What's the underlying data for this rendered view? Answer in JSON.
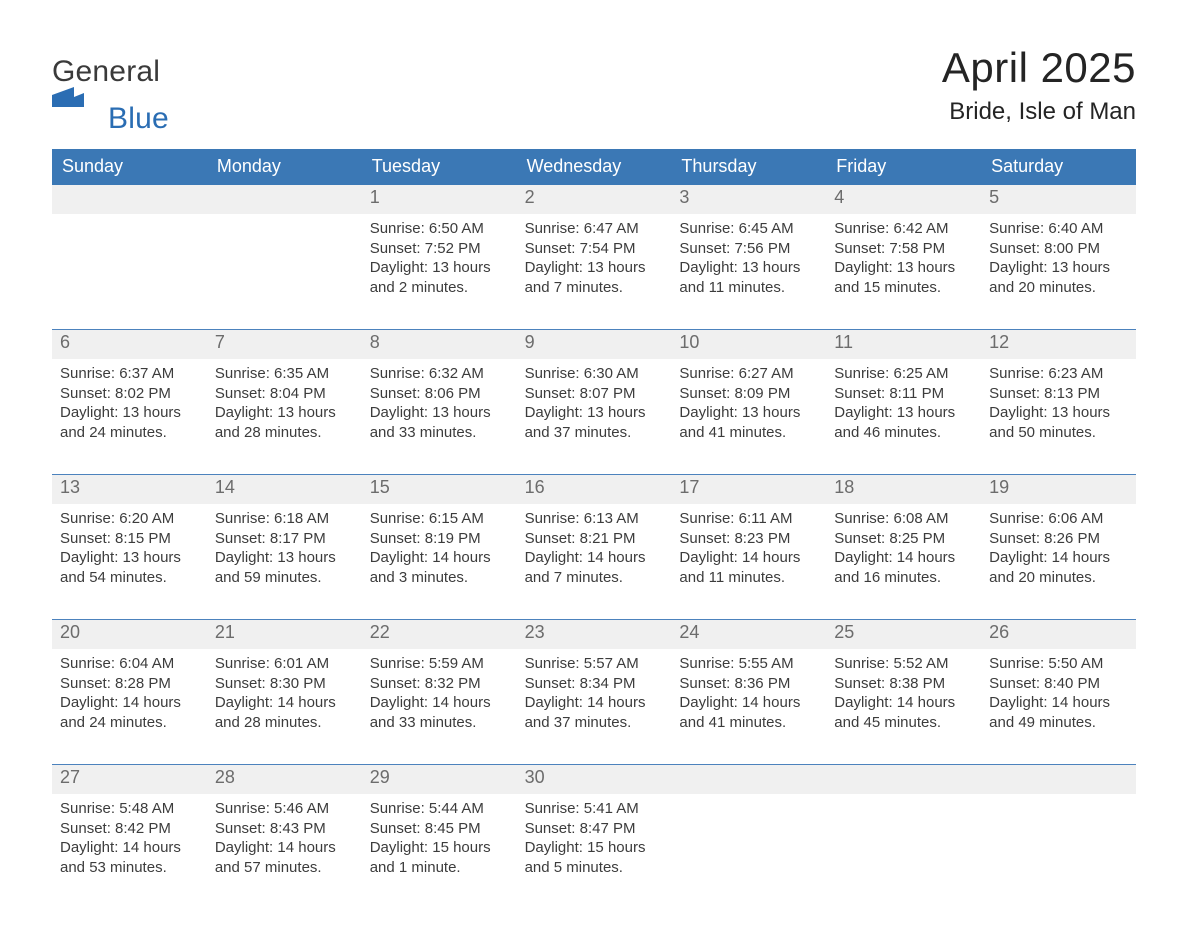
{
  "brand": {
    "word1": "General",
    "word2": "Blue",
    "mark_color": "#2a6db3",
    "word1_color": "#3a3a3a",
    "word2_color": "#2a6db3"
  },
  "title": "April 2025",
  "subtitle": "Bride, Isle of Man",
  "colors": {
    "header_bg": "#3b78b5",
    "header_fg": "#ffffff",
    "daynum_bg": "#f0f0f0",
    "daynum_fg": "#6c6c6c",
    "body_fg": "#3c3c3c",
    "rule": "#4c82bd",
    "page_bg": "#ffffff"
  },
  "typography": {
    "title_fontsize": 42,
    "subtitle_fontsize": 24,
    "dow_fontsize": 18,
    "daynum_fontsize": 18,
    "body_fontsize": 15,
    "font_family": "Helvetica Neue, Helvetica, Arial, sans-serif"
  },
  "days_of_week": [
    "Sunday",
    "Monday",
    "Tuesday",
    "Wednesday",
    "Thursday",
    "Friday",
    "Saturday"
  ],
  "weeks": [
    [
      {
        "num": "",
        "sunrise": "",
        "sunset": "",
        "daylight": ""
      },
      {
        "num": "",
        "sunrise": "",
        "sunset": "",
        "daylight": ""
      },
      {
        "num": "1",
        "sunrise": "Sunrise: 6:50 AM",
        "sunset": "Sunset: 7:52 PM",
        "daylight": "Daylight: 13 hours and 2 minutes."
      },
      {
        "num": "2",
        "sunrise": "Sunrise: 6:47 AM",
        "sunset": "Sunset: 7:54 PM",
        "daylight": "Daylight: 13 hours and 7 minutes."
      },
      {
        "num": "3",
        "sunrise": "Sunrise: 6:45 AM",
        "sunset": "Sunset: 7:56 PM",
        "daylight": "Daylight: 13 hours and 11 minutes."
      },
      {
        "num": "4",
        "sunrise": "Sunrise: 6:42 AM",
        "sunset": "Sunset: 7:58 PM",
        "daylight": "Daylight: 13 hours and 15 minutes."
      },
      {
        "num": "5",
        "sunrise": "Sunrise: 6:40 AM",
        "sunset": "Sunset: 8:00 PM",
        "daylight": "Daylight: 13 hours and 20 minutes."
      }
    ],
    [
      {
        "num": "6",
        "sunrise": "Sunrise: 6:37 AM",
        "sunset": "Sunset: 8:02 PM",
        "daylight": "Daylight: 13 hours and 24 minutes."
      },
      {
        "num": "7",
        "sunrise": "Sunrise: 6:35 AM",
        "sunset": "Sunset: 8:04 PM",
        "daylight": "Daylight: 13 hours and 28 minutes."
      },
      {
        "num": "8",
        "sunrise": "Sunrise: 6:32 AM",
        "sunset": "Sunset: 8:06 PM",
        "daylight": "Daylight: 13 hours and 33 minutes."
      },
      {
        "num": "9",
        "sunrise": "Sunrise: 6:30 AM",
        "sunset": "Sunset: 8:07 PM",
        "daylight": "Daylight: 13 hours and 37 minutes."
      },
      {
        "num": "10",
        "sunrise": "Sunrise: 6:27 AM",
        "sunset": "Sunset: 8:09 PM",
        "daylight": "Daylight: 13 hours and 41 minutes."
      },
      {
        "num": "11",
        "sunrise": "Sunrise: 6:25 AM",
        "sunset": "Sunset: 8:11 PM",
        "daylight": "Daylight: 13 hours and 46 minutes."
      },
      {
        "num": "12",
        "sunrise": "Sunrise: 6:23 AM",
        "sunset": "Sunset: 8:13 PM",
        "daylight": "Daylight: 13 hours and 50 minutes."
      }
    ],
    [
      {
        "num": "13",
        "sunrise": "Sunrise: 6:20 AM",
        "sunset": "Sunset: 8:15 PM",
        "daylight": "Daylight: 13 hours and 54 minutes."
      },
      {
        "num": "14",
        "sunrise": "Sunrise: 6:18 AM",
        "sunset": "Sunset: 8:17 PM",
        "daylight": "Daylight: 13 hours and 59 minutes."
      },
      {
        "num": "15",
        "sunrise": "Sunrise: 6:15 AM",
        "sunset": "Sunset: 8:19 PM",
        "daylight": "Daylight: 14 hours and 3 minutes."
      },
      {
        "num": "16",
        "sunrise": "Sunrise: 6:13 AM",
        "sunset": "Sunset: 8:21 PM",
        "daylight": "Daylight: 14 hours and 7 minutes."
      },
      {
        "num": "17",
        "sunrise": "Sunrise: 6:11 AM",
        "sunset": "Sunset: 8:23 PM",
        "daylight": "Daylight: 14 hours and 11 minutes."
      },
      {
        "num": "18",
        "sunrise": "Sunrise: 6:08 AM",
        "sunset": "Sunset: 8:25 PM",
        "daylight": "Daylight: 14 hours and 16 minutes."
      },
      {
        "num": "19",
        "sunrise": "Sunrise: 6:06 AM",
        "sunset": "Sunset: 8:26 PM",
        "daylight": "Daylight: 14 hours and 20 minutes."
      }
    ],
    [
      {
        "num": "20",
        "sunrise": "Sunrise: 6:04 AM",
        "sunset": "Sunset: 8:28 PM",
        "daylight": "Daylight: 14 hours and 24 minutes."
      },
      {
        "num": "21",
        "sunrise": "Sunrise: 6:01 AM",
        "sunset": "Sunset: 8:30 PM",
        "daylight": "Daylight: 14 hours and 28 minutes."
      },
      {
        "num": "22",
        "sunrise": "Sunrise: 5:59 AM",
        "sunset": "Sunset: 8:32 PM",
        "daylight": "Daylight: 14 hours and 33 minutes."
      },
      {
        "num": "23",
        "sunrise": "Sunrise: 5:57 AM",
        "sunset": "Sunset: 8:34 PM",
        "daylight": "Daylight: 14 hours and 37 minutes."
      },
      {
        "num": "24",
        "sunrise": "Sunrise: 5:55 AM",
        "sunset": "Sunset: 8:36 PM",
        "daylight": "Daylight: 14 hours and 41 minutes."
      },
      {
        "num": "25",
        "sunrise": "Sunrise: 5:52 AM",
        "sunset": "Sunset: 8:38 PM",
        "daylight": "Daylight: 14 hours and 45 minutes."
      },
      {
        "num": "26",
        "sunrise": "Sunrise: 5:50 AM",
        "sunset": "Sunset: 8:40 PM",
        "daylight": "Daylight: 14 hours and 49 minutes."
      }
    ],
    [
      {
        "num": "27",
        "sunrise": "Sunrise: 5:48 AM",
        "sunset": "Sunset: 8:42 PM",
        "daylight": "Daylight: 14 hours and 53 minutes."
      },
      {
        "num": "28",
        "sunrise": "Sunrise: 5:46 AM",
        "sunset": "Sunset: 8:43 PM",
        "daylight": "Daylight: 14 hours and 57 minutes."
      },
      {
        "num": "29",
        "sunrise": "Sunrise: 5:44 AM",
        "sunset": "Sunset: 8:45 PM",
        "daylight": "Daylight: 15 hours and 1 minute."
      },
      {
        "num": "30",
        "sunrise": "Sunrise: 5:41 AM",
        "sunset": "Sunset: 8:47 PM",
        "daylight": "Daylight: 15 hours and 5 minutes."
      },
      {
        "num": "",
        "sunrise": "",
        "sunset": "",
        "daylight": ""
      },
      {
        "num": "",
        "sunrise": "",
        "sunset": "",
        "daylight": ""
      },
      {
        "num": "",
        "sunrise": "",
        "sunset": "",
        "daylight": ""
      }
    ]
  ]
}
